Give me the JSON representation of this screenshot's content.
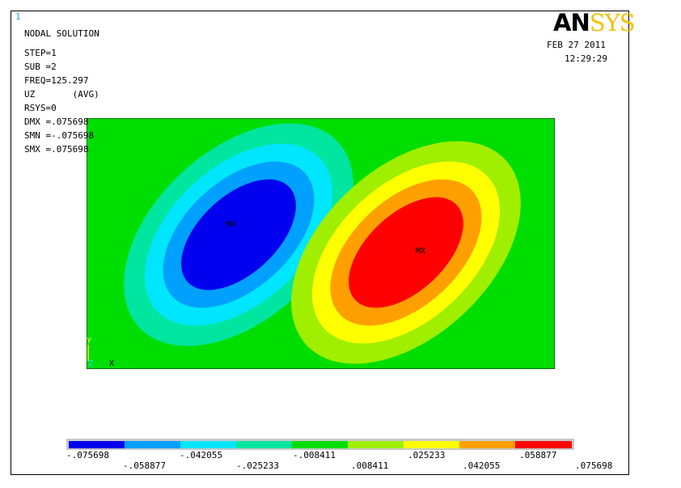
{
  "window_number": "1",
  "logo": {
    "part1": "AN",
    "part2": "SYS"
  },
  "date": "FEB 27 2011",
  "time": "12:29:29",
  "info": {
    "title": "NODAL SOLUTION",
    "step": "STEP=1",
    "sub": "SUB =2",
    "freq": "FREQ=125.297",
    "uz": "UZ       (AVG)",
    "rsys": "RSYS=0",
    "dmx": "DMX =.075698",
    "smn": "SMN =-.075698",
    "smx": "SMX =.075698"
  },
  "markers": {
    "min": "MN",
    "max": "MX",
    "axis_y": "Y",
    "axis_z": "Z",
    "axis_x": "X"
  },
  "colors": {
    "background": "#00dd00",
    "bands": [
      "#0000ee",
      "#00a0ff",
      "#00e6ff",
      "#00e6a0",
      "#00dd00",
      "#a0ee00",
      "#ffff00",
      "#ffa000",
      "#ff0000"
    ]
  },
  "legend": {
    "ticks_low": [
      "-.075698",
      "-.042055",
      "-.008411",
      ".025233",
      ".058877"
    ],
    "ticks_high": [
      "-.058877",
      "-.025233",
      ".008411",
      ".042055",
      ".075698"
    ]
  }
}
